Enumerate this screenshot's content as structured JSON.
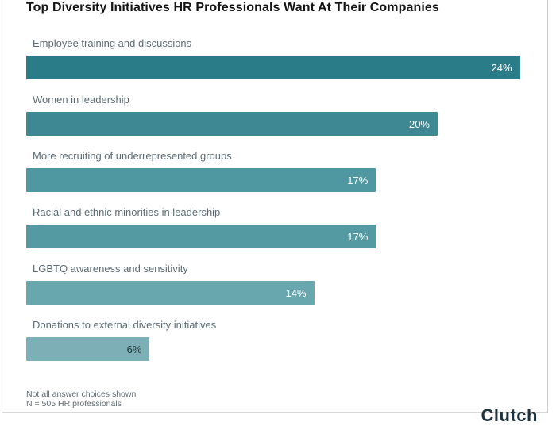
{
  "title": "Top Diversity Initiatives HR Professionals Want At Their Companies",
  "footnote": {
    "line1": "Not all answer choices shown",
    "line2": "N = 505 HR professionals"
  },
  "logo": {
    "text": "Clutch",
    "note": "wordmark cut off at bottom edge of image"
  },
  "colors": {
    "title_text": "#141414",
    "category_text": "#5c6c73",
    "footnote_text": "#5f6c72",
    "card_border": "#cccccc",
    "logo_text": "#1c323c"
  },
  "chart_data": {
    "type": "bar",
    "orientation": "horizontal",
    "title": "Top Diversity Initiatives HR Professionals Want At Their Companies",
    "xlabel": "",
    "ylabel": "",
    "xlim": [
      0,
      24
    ],
    "grid": false,
    "legend": false,
    "categories": [
      "Employee training and discussions",
      "Women in leadership",
      "More recruiting of underrepresented groups",
      "Racial and ethnic minorities in leadership",
      "LGBTQ awareness and sensitivity",
      "Donations to external diversity initiatives"
    ],
    "values": [
      24,
      20,
      17,
      17,
      14,
      6
    ],
    "value_labels": [
      "24%",
      "20%",
      "17%",
      "17%",
      "14%",
      "6%"
    ],
    "bar_colors": [
      "#2A7D88",
      "#3E8893",
      "#4F98A1",
      "#539AA3",
      "#68A7AE",
      "#7DB0B6"
    ],
    "value_label_colors": [
      "#ffffff",
      "#ffffff",
      "#ffffff",
      "#ffffff",
      "#ffffff",
      "#22333a"
    ]
  }
}
